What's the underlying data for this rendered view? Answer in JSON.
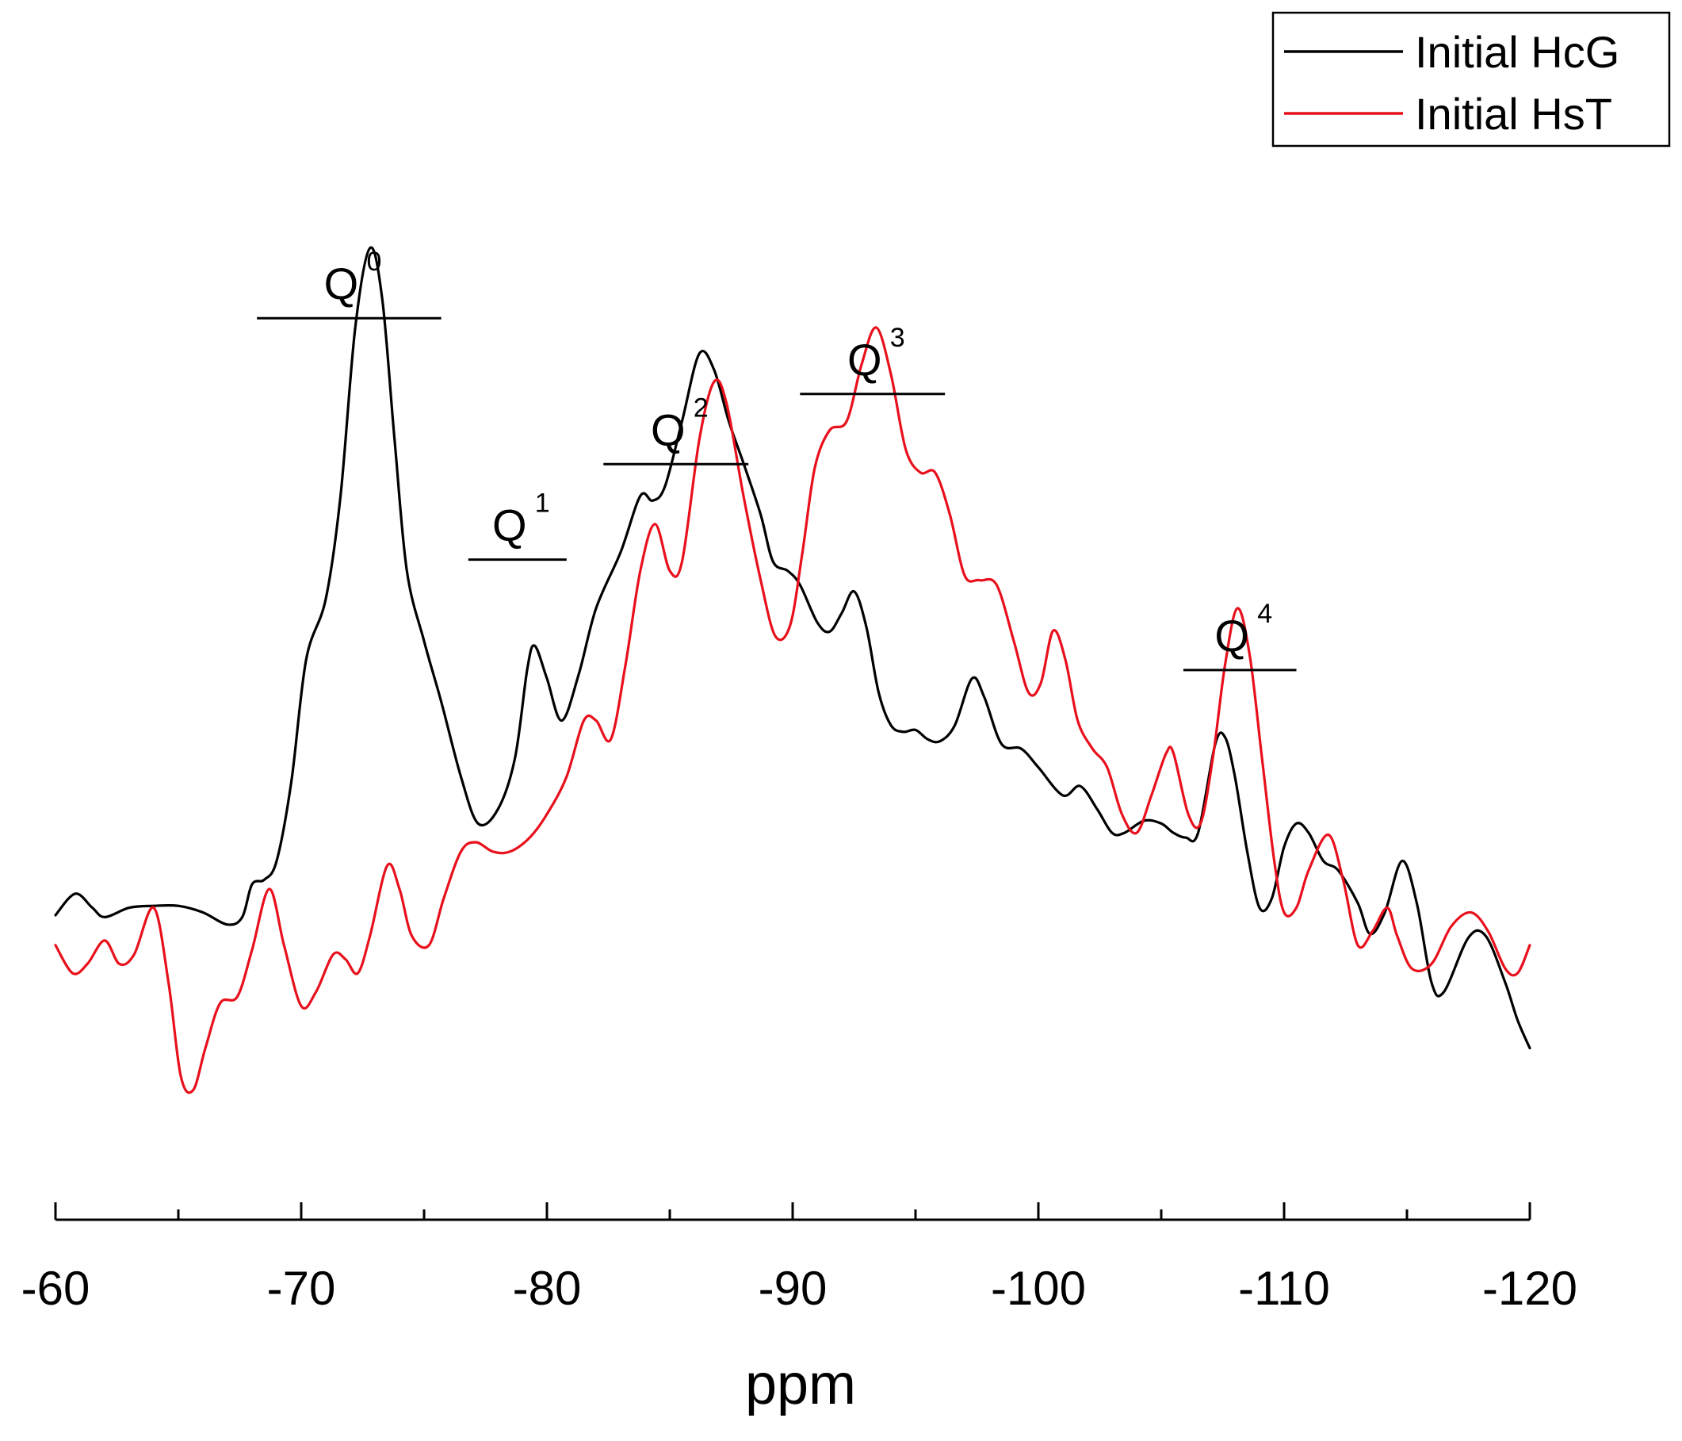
{
  "chart_data": {
    "type": "line",
    "title": "",
    "xlabel": "ppm",
    "ylabel": "",
    "xlim": [
      -60,
      -120
    ],
    "ylim": [
      0,
      1
    ],
    "x_ticks": [
      -60,
      -70,
      -80,
      -90,
      -100,
      -110,
      -120
    ],
    "x_tick_labels": [
      "-60",
      "-70",
      "-80",
      "-90",
      "-100",
      "-110",
      "-120"
    ],
    "grid": false,
    "legend_position": "top-right",
    "series": [
      {
        "name": "Initial HcG",
        "color": "#000000",
        "points": [
          [
            -60,
            0.272
          ],
          [
            -60.8,
            0.295
          ],
          [
            -61.5,
            0.28
          ],
          [
            -62,
            0.27
          ],
          [
            -63,
            0.28
          ],
          [
            -64,
            0.282
          ],
          [
            -65,
            0.282
          ],
          [
            -66,
            0.275
          ],
          [
            -67,
            0.262
          ],
          [
            -67.6,
            0.27
          ],
          [
            -68,
            0.305
          ],
          [
            -68.5,
            0.31
          ],
          [
            -69,
            0.33
          ],
          [
            -69.6,
            0.415
          ],
          [
            -70.2,
            0.545
          ],
          [
            -71,
            0.61
          ],
          [
            -71.6,
            0.72
          ],
          [
            -72.2,
            0.9
          ],
          [
            -72.8,
            0.985
          ],
          [
            -73.3,
            0.93
          ],
          [
            -73.8,
            0.78
          ],
          [
            -74.3,
            0.64
          ],
          [
            -75,
            0.565
          ],
          [
            -75.7,
            0.5
          ],
          [
            -76.5,
            0.42
          ],
          [
            -77.2,
            0.37
          ],
          [
            -78,
            0.385
          ],
          [
            -78.7,
            0.44
          ],
          [
            -79.2,
            0.535
          ],
          [
            -79.5,
            0.56
          ],
          [
            -80,
            0.525
          ],
          [
            -80.6,
            0.48
          ],
          [
            -81.3,
            0.53
          ],
          [
            -82,
            0.6
          ],
          [
            -83,
            0.66
          ],
          [
            -83.8,
            0.72
          ],
          [
            -84.3,
            0.715
          ],
          [
            -84.8,
            0.73
          ],
          [
            -85.5,
            0.8
          ],
          [
            -86.2,
            0.872
          ],
          [
            -86.8,
            0.855
          ],
          [
            -87.4,
            0.8
          ],
          [
            -88,
            0.755
          ],
          [
            -88.7,
            0.7
          ],
          [
            -89.2,
            0.65
          ],
          [
            -89.8,
            0.64
          ],
          [
            -90.3,
            0.625
          ],
          [
            -91,
            0.585
          ],
          [
            -91.5,
            0.575
          ],
          [
            -92,
            0.595
          ],
          [
            -92.5,
            0.618
          ],
          [
            -93,
            0.58
          ],
          [
            -93.5,
            0.51
          ],
          [
            -94,
            0.475
          ],
          [
            -94.5,
            0.468
          ],
          [
            -95,
            0.47
          ],
          [
            -95.5,
            0.46
          ],
          [
            -96,
            0.458
          ],
          [
            -96.6,
            0.475
          ],
          [
            -97.3,
            0.525
          ],
          [
            -97.8,
            0.505
          ],
          [
            -98.5,
            0.455
          ],
          [
            -99.3,
            0.45
          ],
          [
            -100,
            0.43
          ],
          [
            -101,
            0.4
          ],
          [
            -101.7,
            0.41
          ],
          [
            -102.4,
            0.385
          ],
          [
            -103,
            0.36
          ],
          [
            -103.5,
            0.36
          ],
          [
            -104.3,
            0.373
          ],
          [
            -105,
            0.37
          ],
          [
            -105.5,
            0.36
          ],
          [
            -106,
            0.355
          ],
          [
            -106.5,
            0.36
          ],
          [
            -107.2,
            0.455
          ],
          [
            -107.6,
            0.462
          ],
          [
            -108,
            0.42
          ],
          [
            -108.5,
            0.34
          ],
          [
            -109,
            0.28
          ],
          [
            -109.5,
            0.29
          ],
          [
            -110,
            0.345
          ],
          [
            -110.5,
            0.37
          ],
          [
            -111,
            0.36
          ],
          [
            -111.6,
            0.33
          ],
          [
            -112.2,
            0.32
          ],
          [
            -113,
            0.285
          ],
          [
            -113.5,
            0.252
          ],
          [
            -114.1,
            0.275
          ],
          [
            -114.8,
            0.33
          ],
          [
            -115.4,
            0.285
          ],
          [
            -116,
            0.2
          ],
          [
            -116.5,
            0.19
          ],
          [
            -117.5,
            0.248
          ],
          [
            -118.2,
            0.25
          ],
          [
            -119,
            0.2
          ],
          [
            -119.5,
            0.16
          ],
          [
            -120,
            0.13
          ]
        ]
      },
      {
        "name": "Initial HsT",
        "color": "#e8101c",
        "points": [
          [
            -60,
            0.24
          ],
          [
            -60.7,
            0.21
          ],
          [
            -61.3,
            0.22
          ],
          [
            -62,
            0.245
          ],
          [
            -62.6,
            0.22
          ],
          [
            -63.2,
            0.23
          ],
          [
            -64,
            0.28
          ],
          [
            -64.6,
            0.2
          ],
          [
            -65.1,
            0.1
          ],
          [
            -65.6,
            0.085
          ],
          [
            -66.1,
            0.13
          ],
          [
            -66.7,
            0.178
          ],
          [
            -67.4,
            0.185
          ],
          [
            -68,
            0.235
          ],
          [
            -68.7,
            0.3
          ],
          [
            -69.3,
            0.24
          ],
          [
            -70,
            0.175
          ],
          [
            -70.6,
            0.19
          ],
          [
            -71.3,
            0.23
          ],
          [
            -71.8,
            0.225
          ],
          [
            -72.3,
            0.21
          ],
          [
            -72.8,
            0.25
          ],
          [
            -73.5,
            0.325
          ],
          [
            -74,
            0.3
          ],
          [
            -74.5,
            0.25
          ],
          [
            -75.2,
            0.24
          ],
          [
            -75.8,
            0.29
          ],
          [
            -76.5,
            0.34
          ],
          [
            -77.1,
            0.35
          ],
          [
            -77.8,
            0.34
          ],
          [
            -78.5,
            0.34
          ],
          [
            -79.3,
            0.355
          ],
          [
            -80,
            0.38
          ],
          [
            -80.8,
            0.42
          ],
          [
            -81.5,
            0.48
          ],
          [
            -82,
            0.48
          ],
          [
            -82.6,
            0.46
          ],
          [
            -83.2,
            0.54
          ],
          [
            -83.8,
            0.64
          ],
          [
            -84.4,
            0.69
          ],
          [
            -85,
            0.64
          ],
          [
            -85.5,
            0.65
          ],
          [
            -86.2,
            0.78
          ],
          [
            -86.8,
            0.842
          ],
          [
            -87.3,
            0.82
          ],
          [
            -88,
            0.72
          ],
          [
            -88.7,
            0.63
          ],
          [
            -89.3,
            0.57
          ],
          [
            -89.9,
            0.582
          ],
          [
            -90.4,
            0.66
          ],
          [
            -90.9,
            0.75
          ],
          [
            -91.5,
            0.79
          ],
          [
            -92.2,
            0.8
          ],
          [
            -92.8,
            0.86
          ],
          [
            -93.4,
            0.9
          ],
          [
            -94,
            0.85
          ],
          [
            -94.6,
            0.77
          ],
          [
            -95.2,
            0.745
          ],
          [
            -95.8,
            0.745
          ],
          [
            -96.4,
            0.7
          ],
          [
            -97,
            0.635
          ],
          [
            -97.6,
            0.63
          ],
          [
            -98.3,
            0.625
          ],
          [
            -99,
            0.565
          ],
          [
            -99.6,
            0.51
          ],
          [
            -100.1,
            0.52
          ],
          [
            -100.6,
            0.576
          ],
          [
            -101.1,
            0.545
          ],
          [
            -101.6,
            0.48
          ],
          [
            -102.2,
            0.45
          ],
          [
            -102.8,
            0.43
          ],
          [
            -103.4,
            0.38
          ],
          [
            -104,
            0.36
          ],
          [
            -104.6,
            0.4
          ],
          [
            -105.2,
            0.445
          ],
          [
            -105.5,
            0.445
          ],
          [
            -106.1,
            0.38
          ],
          [
            -106.6,
            0.37
          ],
          [
            -107.1,
            0.44
          ],
          [
            -107.6,
            0.54
          ],
          [
            -108.1,
            0.6
          ],
          [
            -108.6,
            0.55
          ],
          [
            -109.1,
            0.44
          ],
          [
            -109.6,
            0.33
          ],
          [
            -110,
            0.275
          ],
          [
            -110.5,
            0.28
          ],
          [
            -111,
            0.32
          ],
          [
            -111.8,
            0.358
          ],
          [
            -112.4,
            0.31
          ],
          [
            -113,
            0.24
          ],
          [
            -113.6,
            0.255
          ],
          [
            -114.2,
            0.28
          ],
          [
            -114.6,
            0.25
          ],
          [
            -115.2,
            0.215
          ],
          [
            -116,
            0.22
          ],
          [
            -116.8,
            0.26
          ],
          [
            -117.6,
            0.275
          ],
          [
            -118.3,
            0.255
          ],
          [
            -119,
            0.215
          ],
          [
            -119.5,
            0.21
          ],
          [
            -120,
            0.24
          ]
        ]
      }
    ],
    "annotations": [
      {
        "base": "Q",
        "sup": "0",
        "x_from": -68.2,
        "x_to": -75.7,
        "level": 0.91
      },
      {
        "base": "Q",
        "sup": "1",
        "x_from": -76.8,
        "x_to": -80.8,
        "level": 0.652
      },
      {
        "base": "Q",
        "sup": "2",
        "x_from": -82.3,
        "x_to": -88.2,
        "level": 0.754
      },
      {
        "base": "Q",
        "sup": "3",
        "x_from": -90.3,
        "x_to": -96.2,
        "level": 0.829
      },
      {
        "base": "Q",
        "sup": "4",
        "x_from": -105.9,
        "x_to": -110.5,
        "level": 0.534
      }
    ]
  }
}
